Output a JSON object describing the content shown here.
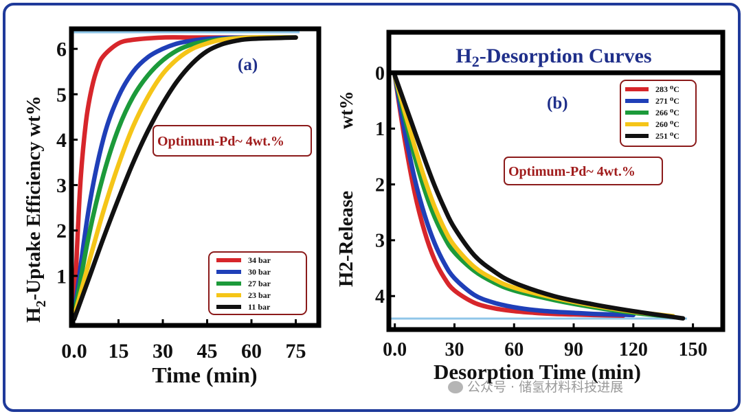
{
  "chart_data": [
    {
      "type": "line",
      "panel_label": "(a)",
      "annotation": "Optimum-Pd~ 4wt.%",
      "ylabel_main": "H",
      "ylabel_sub": "2",
      "ylabel_rest": "-Uptake Efficiency wt%",
      "xlabel": "Time  (min)",
      "xlim": [
        0,
        80
      ],
      "ylim": [
        0,
        6.35
      ],
      "xticks": [
        0,
        15,
        30,
        45,
        60,
        75
      ],
      "xtick_labels": [
        "0.0",
        "15",
        "30",
        "45",
        "60",
        "75"
      ],
      "yticks": [
        1,
        2,
        3,
        4,
        5,
        6
      ],
      "ytick_labels": [
        "1",
        "2",
        "3",
        "4",
        "5",
        "6"
      ],
      "legend_position": "bottom-right",
      "series": [
        {
          "name": "34 bar",
          "color": "#d7262b",
          "x": [
            0,
            2,
            4,
            6,
            8,
            10,
            15,
            20,
            30,
            40,
            50,
            60,
            75
          ],
          "y": [
            0.2,
            2.95,
            4.4,
            5.15,
            5.6,
            5.85,
            6.12,
            6.2,
            6.25,
            6.25,
            6.25,
            6.25,
            6.25
          ]
        },
        {
          "name": "30 bar",
          "color": "#1f3fb8",
          "x": [
            0,
            5,
            10,
            15,
            20,
            25,
            30,
            35,
            40,
            45,
            50,
            60,
            75
          ],
          "y": [
            0.15,
            2.5,
            4.05,
            4.95,
            5.5,
            5.82,
            6.0,
            6.12,
            6.18,
            6.22,
            6.24,
            6.25,
            6.25
          ]
        },
        {
          "name": "27 bar",
          "color": "#1c9a3a",
          "x": [
            0,
            5,
            10,
            15,
            20,
            25,
            30,
            35,
            40,
            45,
            50,
            60,
            75
          ],
          "y": [
            0.12,
            1.9,
            3.25,
            4.25,
            4.95,
            5.42,
            5.75,
            5.97,
            6.1,
            6.17,
            6.21,
            6.25,
            6.25
          ]
        },
        {
          "name": "23 bar",
          "color": "#f5c518",
          "x": [
            0,
            5,
            10,
            15,
            20,
            25,
            30,
            35,
            40,
            45,
            50,
            60,
            75
          ],
          "y": [
            0.1,
            1.3,
            2.45,
            3.45,
            4.3,
            4.95,
            5.45,
            5.78,
            6.0,
            6.12,
            6.2,
            6.25,
            6.25
          ]
        },
        {
          "name": "11 bar",
          "color": "#111111",
          "x": [
            0,
            5,
            10,
            15,
            20,
            25,
            30,
            35,
            40,
            45,
            50,
            55,
            60,
            75
          ],
          "y": [
            0.05,
            0.95,
            1.85,
            2.7,
            3.5,
            4.2,
            4.8,
            5.3,
            5.68,
            5.95,
            6.1,
            6.18,
            6.22,
            6.25
          ]
        }
      ]
    },
    {
      "type": "line",
      "panel_label": "(b)",
      "title_main": "H",
      "title_sub": "2",
      "title_rest": "-Desorption Curves",
      "annotation": "Optimum-Pd~ 4wt.%",
      "ylabel": "H2-Release",
      "ylabel_unit": "wt%",
      "xlabel": "Desorption Time  (min)",
      "xlim": [
        -3,
        165
      ],
      "ylim": [
        4.6,
        0
      ],
      "xticks": [
        0,
        30,
        60,
        90,
        120,
        150
      ],
      "xtick_labels": [
        "0.0",
        "30",
        "60",
        "90",
        "120",
        "150"
      ],
      "yticks": [
        0,
        1,
        2,
        3,
        4
      ],
      "ytick_labels": [
        "0",
        "1",
        "2",
        "3",
        "4"
      ],
      "legend_position": "top-right",
      "series": [
        {
          "name": "283 ⁰C",
          "color": "#d7262b",
          "x": [
            0,
            5,
            10,
            15,
            20,
            25,
            30,
            40,
            50,
            60,
            70,
            80,
            90,
            100,
            115
          ],
          "y": [
            0.05,
            1.2,
            2.15,
            2.85,
            3.35,
            3.68,
            3.9,
            4.12,
            4.22,
            4.27,
            4.3,
            4.32,
            4.33,
            4.34,
            4.35
          ]
        },
        {
          "name": "271 ⁰C",
          "color": "#1f3fb8",
          "x": [
            0,
            5,
            10,
            15,
            20,
            25,
            30,
            40,
            50,
            60,
            70,
            80,
            90,
            100,
            120
          ],
          "y": [
            0.05,
            1.05,
            1.9,
            2.55,
            3.05,
            3.42,
            3.68,
            3.98,
            4.12,
            4.2,
            4.25,
            4.28,
            4.3,
            4.32,
            4.34
          ]
        },
        {
          "name": "266 ⁰C",
          "color": "#1c9a3a",
          "x": [
            0,
            5,
            10,
            15,
            20,
            25,
            30,
            40,
            50,
            60,
            80,
            100,
            120,
            140
          ],
          "y": [
            0.05,
            0.8,
            1.5,
            2.1,
            2.58,
            2.95,
            3.22,
            3.55,
            3.76,
            3.9,
            4.07,
            4.2,
            4.3,
            4.37
          ]
        },
        {
          "name": "260 ⁰C",
          "color": "#f5c518",
          "x": [
            0,
            5,
            10,
            15,
            20,
            25,
            30,
            40,
            50,
            60,
            80,
            100,
            120,
            140
          ],
          "y": [
            0.05,
            0.7,
            1.32,
            1.9,
            2.4,
            2.8,
            3.1,
            3.48,
            3.7,
            3.85,
            4.03,
            4.17,
            4.28,
            4.36
          ]
        },
        {
          "name": "251 ⁰C",
          "color": "#111111",
          "x": [
            0,
            5,
            10,
            15,
            20,
            25,
            30,
            40,
            50,
            60,
            80,
            100,
            120,
            145
          ],
          "y": [
            0.05,
            0.55,
            1.05,
            1.55,
            2.02,
            2.43,
            2.78,
            3.27,
            3.56,
            3.76,
            4.0,
            4.15,
            4.27,
            4.4
          ]
        }
      ]
    }
  ],
  "watermark": "公众号 · 储氢材料科技进展"
}
